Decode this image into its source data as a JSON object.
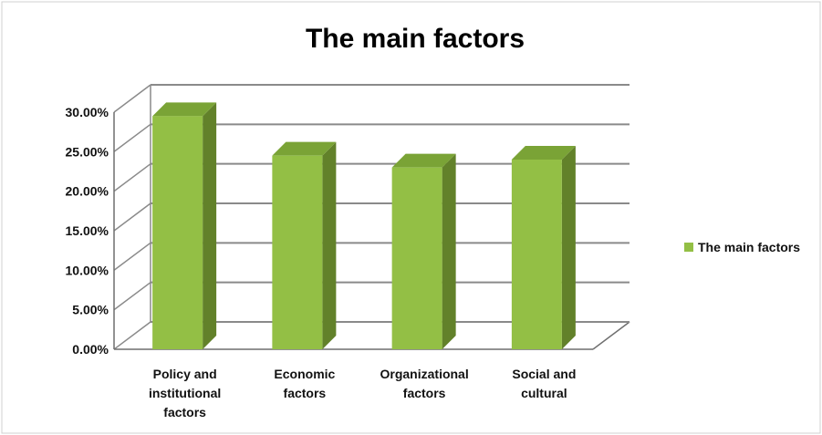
{
  "chart_data": {
    "type": "bar",
    "title": "The main factors",
    "categories": [
      [
        "Policy and",
        "institutional",
        "factors"
      ],
      [
        "Economic",
        "factors"
      ],
      [
        "Organizational",
        "factors"
      ],
      [
        "Social and",
        "cultural"
      ]
    ],
    "series": [
      {
        "name": "The main factors",
        "values": [
          29.5,
          24.5,
          23.0,
          24.0
        ]
      }
    ],
    "y_ticks": [
      "0.00%",
      "5.00%",
      "10.00%",
      "15.00%",
      "20.00%",
      "25.00%",
      "30.00%"
    ],
    "ylim": [
      0,
      30
    ],
    "grid": true,
    "legend_position": "right",
    "colors": {
      "bar_front": "#93bf45",
      "bar_side": "#62812a",
      "bar_top": "#7aa336",
      "legend_swatch": "#93bf45"
    }
  }
}
